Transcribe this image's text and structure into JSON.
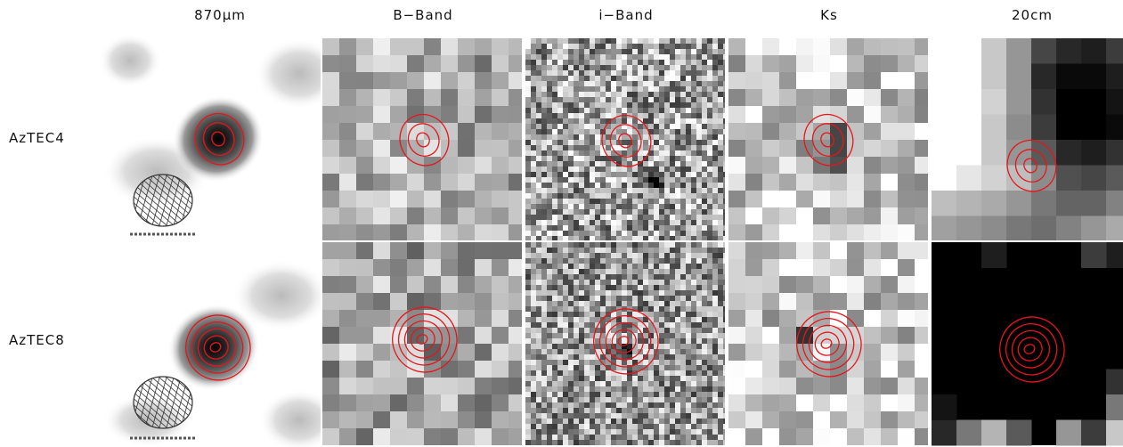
{
  "figure": {
    "columns": [
      "870μm",
      "B−Band",
      "i−Band",
      "Ks",
      "20cm"
    ],
    "rows": [
      "AzTEC4",
      "AzTEC8"
    ],
    "colors": {
      "contour": "#e8141b",
      "beam_hatch": "#333333",
      "scale_bar": "#555555"
    }
  }
}
